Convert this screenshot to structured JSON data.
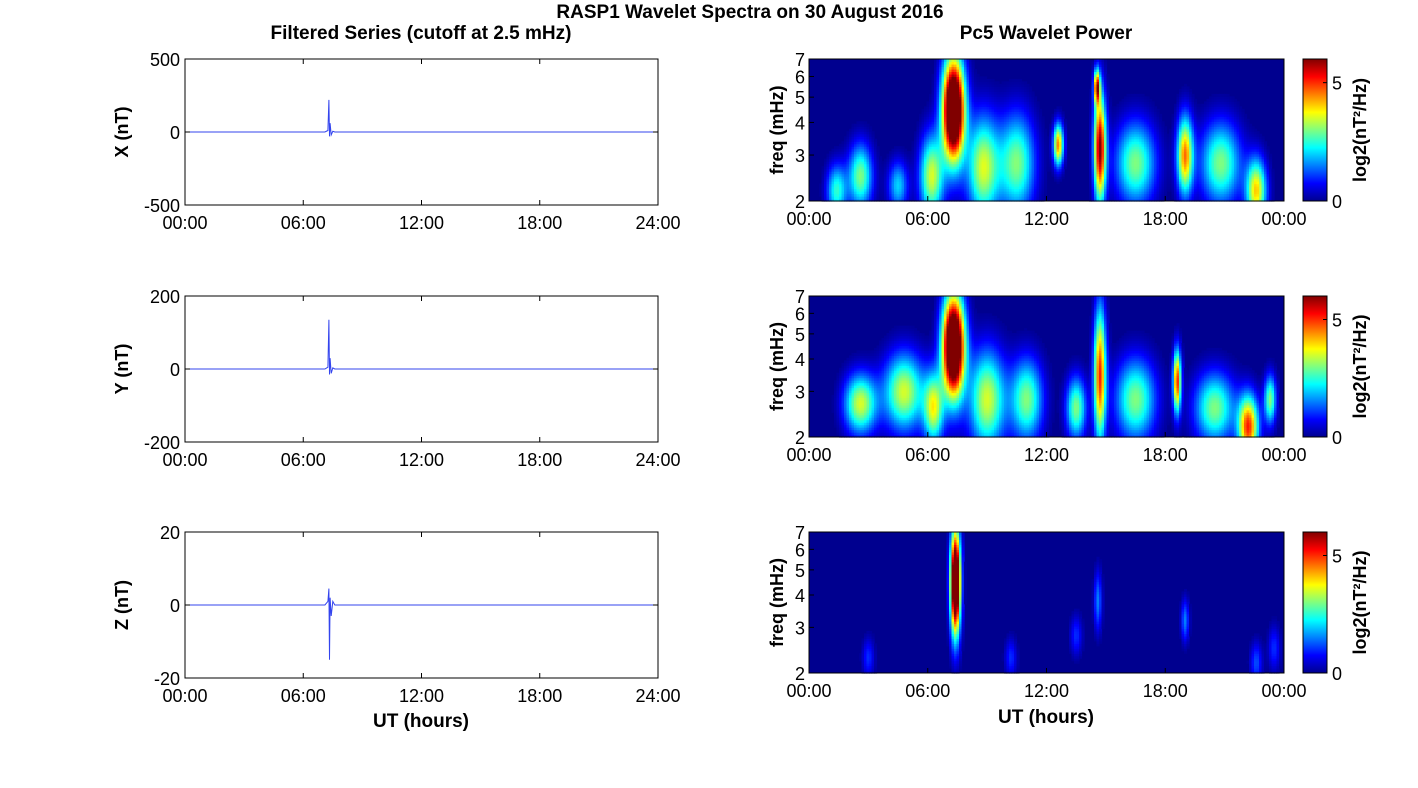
{
  "figure": {
    "title": "RASP1 Wavelet Spectra on 30 August 2016",
    "left_column_title": "Filtered Series (cutoff at 2.5 mHz)",
    "right_column_title": "Pc5 Wavelet Power",
    "left_xlabel": "UT (hours)",
    "right_xlabel": "UT (hours)"
  },
  "colors": {
    "series_line": "#3344ee",
    "axis": "#000000",
    "heatmap_low": "#00008f",
    "heatmap_high": "#800000"
  },
  "chart_data": [
    {
      "type": "line",
      "ylabel": "X (nT)",
      "ylim": [
        -500,
        500
      ],
      "yticks": [
        "500",
        "0",
        "-500"
      ],
      "xlim": [
        0,
        24
      ],
      "xticks": [
        "00:00",
        "06:00",
        "12:00",
        "18:00",
        "24:00"
      ],
      "grid": false,
      "series": [
        {
          "x": [
            0,
            7.1,
            7.25,
            7.3,
            7.33,
            7.36,
            7.42,
            7.5,
            7.6,
            24
          ],
          "y": [
            0,
            0,
            10,
            220,
            -30,
            60,
            -20,
            5,
            0,
            0
          ]
        }
      ]
    },
    {
      "type": "line",
      "ylabel": "Y (nT)",
      "ylim": [
        -200,
        200
      ],
      "yticks": [
        "200",
        "0",
        "-200"
      ],
      "xlim": [
        0,
        24
      ],
      "xticks": [
        "00:00",
        "06:00",
        "12:00",
        "18:00",
        "24:00"
      ],
      "grid": false,
      "series": [
        {
          "x": [
            0,
            7.1,
            7.25,
            7.3,
            7.33,
            7.36,
            7.42,
            7.5,
            7.6,
            24
          ],
          "y": [
            0,
            0,
            5,
            135,
            -15,
            30,
            -12,
            3,
            0,
            0
          ]
        }
      ]
    },
    {
      "type": "line",
      "ylabel": "Z (nT)",
      "ylim": [
        -20,
        20
      ],
      "yticks": [
        "20",
        "0",
        "-20"
      ],
      "xlim": [
        0,
        24
      ],
      "xticks": [
        "00:00",
        "06:00",
        "12:00",
        "18:00",
        "24:00"
      ],
      "grid": false,
      "series": [
        {
          "x": [
            0,
            7.1,
            7.25,
            7.3,
            7.33,
            7.36,
            7.42,
            7.5,
            7.6,
            24
          ],
          "y": [
            0,
            0,
            1,
            4.5,
            -15,
            2,
            -3,
            1,
            0,
            0
          ]
        }
      ]
    },
    {
      "type": "heatmap",
      "ylabel": "freq (mHz)",
      "y_scale": "log",
      "ylim": [
        2,
        7
      ],
      "yticks": [
        "7",
        "6",
        "5",
        "4",
        "3",
        "2"
      ],
      "xlim": [
        0,
        24
      ],
      "xticks": [
        "00:00",
        "06:00",
        "12:00",
        "18:00",
        "00:00"
      ],
      "colorbar": {
        "label": "log2(nT²/Hz)",
        "ticks": [
          "5",
          "0"
        ],
        "clim": [
          0,
          6
        ]
      },
      "bursts": [
        {
          "t": 7.3,
          "f": 4.5,
          "w": 0.55,
          "h": 2.0,
          "p": 9
        },
        {
          "t": 14.7,
          "f": 3.2,
          "w": 0.3,
          "h": 1.5,
          "p": 6
        },
        {
          "t": 14.55,
          "f": 5.5,
          "w": 0.15,
          "h": 0.8,
          "p": 5
        },
        {
          "t": 12.6,
          "f": 3.3,
          "w": 0.25,
          "h": 0.6,
          "p": 4.5
        },
        {
          "t": 19.0,
          "f": 3.0,
          "w": 0.4,
          "h": 1.0,
          "p": 4.5
        },
        {
          "t": 22.6,
          "f": 2.2,
          "w": 0.5,
          "h": 0.6,
          "p": 4
        },
        {
          "t": 2.6,
          "f": 2.5,
          "w": 0.6,
          "h": 0.7,
          "p": 3
        },
        {
          "t": 6.2,
          "f": 2.5,
          "w": 0.6,
          "h": 0.9,
          "p": 3.5
        },
        {
          "t": 8.8,
          "f": 2.7,
          "w": 0.8,
          "h": 1.2,
          "p": 3.5
        },
        {
          "t": 10.5,
          "f": 2.8,
          "w": 0.9,
          "h": 1.2,
          "p": 3
        },
        {
          "t": 16.5,
          "f": 2.8,
          "w": 1.0,
          "h": 1.0,
          "p": 3
        },
        {
          "t": 20.8,
          "f": 2.8,
          "w": 1.0,
          "h": 1.0,
          "p": 3
        },
        {
          "t": 1.4,
          "f": 2.2,
          "w": 0.5,
          "h": 0.5,
          "p": 2.5
        },
        {
          "t": 4.5,
          "f": 2.3,
          "w": 0.5,
          "h": 0.5,
          "p": 2
        }
      ]
    },
    {
      "type": "heatmap",
      "ylabel": "freq (mHz)",
      "y_scale": "log",
      "ylim": [
        2,
        7
      ],
      "yticks": [
        "7",
        "6",
        "5",
        "4",
        "3",
        "2"
      ],
      "xlim": [
        0,
        24
      ],
      "xticks": [
        "00:00",
        "06:00",
        "12:00",
        "18:00",
        "00:00"
      ],
      "colorbar": {
        "label": "log2(nT²/Hz)",
        "ticks": [
          "5",
          "0"
        ],
        "clim": [
          0,
          6
        ]
      },
      "bursts": [
        {
          "t": 7.3,
          "f": 4.5,
          "w": 0.55,
          "h": 2.0,
          "p": 9
        },
        {
          "t": 14.7,
          "f": 3.5,
          "w": 0.3,
          "h": 2.0,
          "p": 5
        },
        {
          "t": 18.6,
          "f": 3.3,
          "w": 0.2,
          "h": 0.9,
          "p": 5
        },
        {
          "t": 22.2,
          "f": 2.2,
          "w": 0.5,
          "h": 0.6,
          "p": 5
        },
        {
          "t": 2.6,
          "f": 2.7,
          "w": 0.8,
          "h": 0.7,
          "p": 3.5
        },
        {
          "t": 4.8,
          "f": 3.0,
          "w": 1.0,
          "h": 1.0,
          "p": 3.5
        },
        {
          "t": 6.3,
          "f": 2.6,
          "w": 0.5,
          "h": 0.8,
          "p": 3.5
        },
        {
          "t": 9.0,
          "f": 2.8,
          "w": 0.9,
          "h": 1.2,
          "p": 3.5
        },
        {
          "t": 11.0,
          "f": 2.8,
          "w": 0.8,
          "h": 1.0,
          "p": 3
        },
        {
          "t": 13.5,
          "f": 2.6,
          "w": 0.5,
          "h": 0.7,
          "p": 3
        },
        {
          "t": 16.5,
          "f": 2.8,
          "w": 1.0,
          "h": 1.0,
          "p": 3
        },
        {
          "t": 20.5,
          "f": 2.6,
          "w": 1.0,
          "h": 0.8,
          "p": 3
        },
        {
          "t": 23.3,
          "f": 2.8,
          "w": 0.3,
          "h": 0.6,
          "p": 3
        }
      ]
    },
    {
      "type": "heatmap",
      "ylabel": "freq (mHz)",
      "y_scale": "log",
      "ylim": [
        2,
        7
      ],
      "yticks": [
        "7",
        "6",
        "5",
        "4",
        "3",
        "2"
      ],
      "xlim": [
        0,
        24
      ],
      "xticks": [
        "00:00",
        "06:00",
        "12:00",
        "18:00",
        "00:00"
      ],
      "colorbar": {
        "label": "log2(nT²/Hz)",
        "ticks": [
          "5",
          "0"
        ],
        "clim": [
          0,
          6
        ]
      },
      "bursts": [
        {
          "t": 7.4,
          "f": 4.5,
          "w": 0.25,
          "h": 2.0,
          "p": 9
        },
        {
          "t": 14.6,
          "f": 3.8,
          "w": 0.2,
          "h": 1.0,
          "p": 1.5
        },
        {
          "t": 19.0,
          "f": 3.2,
          "w": 0.2,
          "h": 0.6,
          "p": 1.5
        },
        {
          "t": 13.5,
          "f": 2.8,
          "w": 0.3,
          "h": 0.5,
          "p": 1
        },
        {
          "t": 22.6,
          "f": 2.2,
          "w": 0.3,
          "h": 0.4,
          "p": 1.2
        },
        {
          "t": 3.0,
          "f": 2.3,
          "w": 0.3,
          "h": 0.4,
          "p": 1
        },
        {
          "t": 10.2,
          "f": 2.3,
          "w": 0.3,
          "h": 0.4,
          "p": 1
        },
        {
          "t": 23.5,
          "f": 2.5,
          "w": 0.3,
          "h": 0.5,
          "p": 1
        }
      ]
    }
  ]
}
